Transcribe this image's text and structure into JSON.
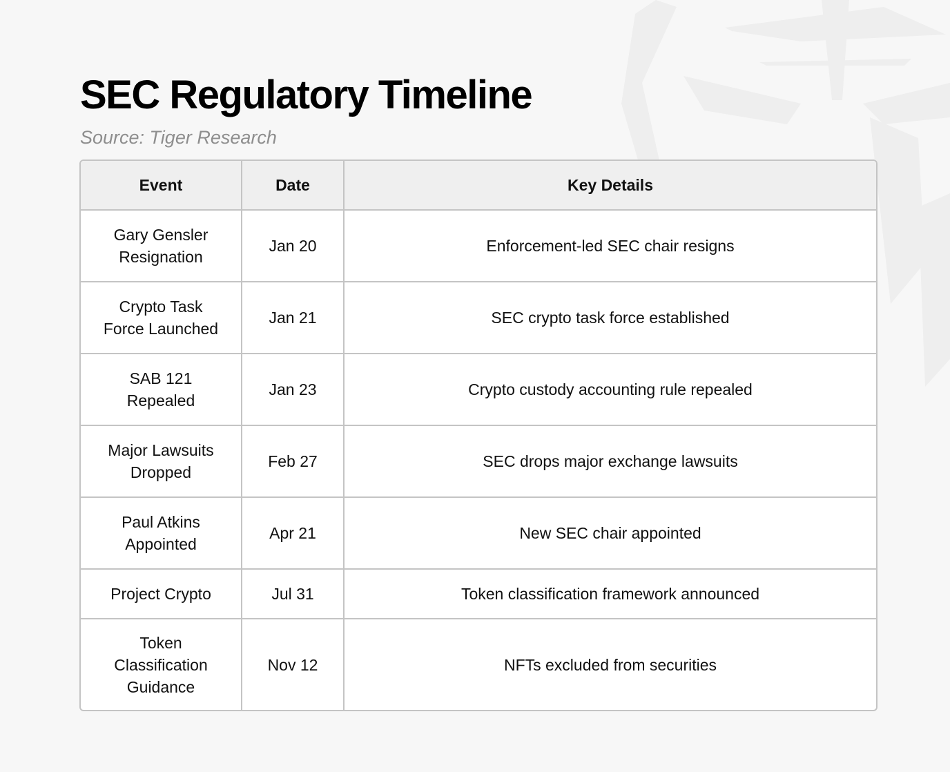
{
  "title": "SEC Regulatory Timeline",
  "source": "Source: Tiger Research",
  "table": {
    "headers": [
      "Event",
      "Date",
      "Key Details"
    ],
    "rows": [
      {
        "event": "Gary Gensler\nResignation",
        "date": "Jan 20",
        "details": "Enforcement-led SEC chair resigns"
      },
      {
        "event": "Crypto Task\nForce Launched",
        "date": "Jan 21",
        "details": "SEC crypto task force established"
      },
      {
        "event": "SAB 121\nRepealed",
        "date": "Jan 23",
        "details": "Crypto custody accounting rule repealed"
      },
      {
        "event": "Major Lawsuits\nDropped",
        "date": "Feb 27",
        "details": "SEC drops major exchange lawsuits"
      },
      {
        "event": "Paul Atkins\nAppointed",
        "date": "Apr 21",
        "details": "New SEC chair appointed"
      },
      {
        "event": "Project Crypto",
        "date": "Jul 31",
        "details": "Token classification framework announced"
      },
      {
        "event": "Token\nClassification\nGuidance",
        "date": "Nov 12",
        "details": "NFTs excluded from securities"
      }
    ]
  },
  "colors": {
    "background": "#f7f7f7",
    "header_bg": "#efefef",
    "border": "#c4c4c4",
    "source_text": "#8e8e8e"
  }
}
